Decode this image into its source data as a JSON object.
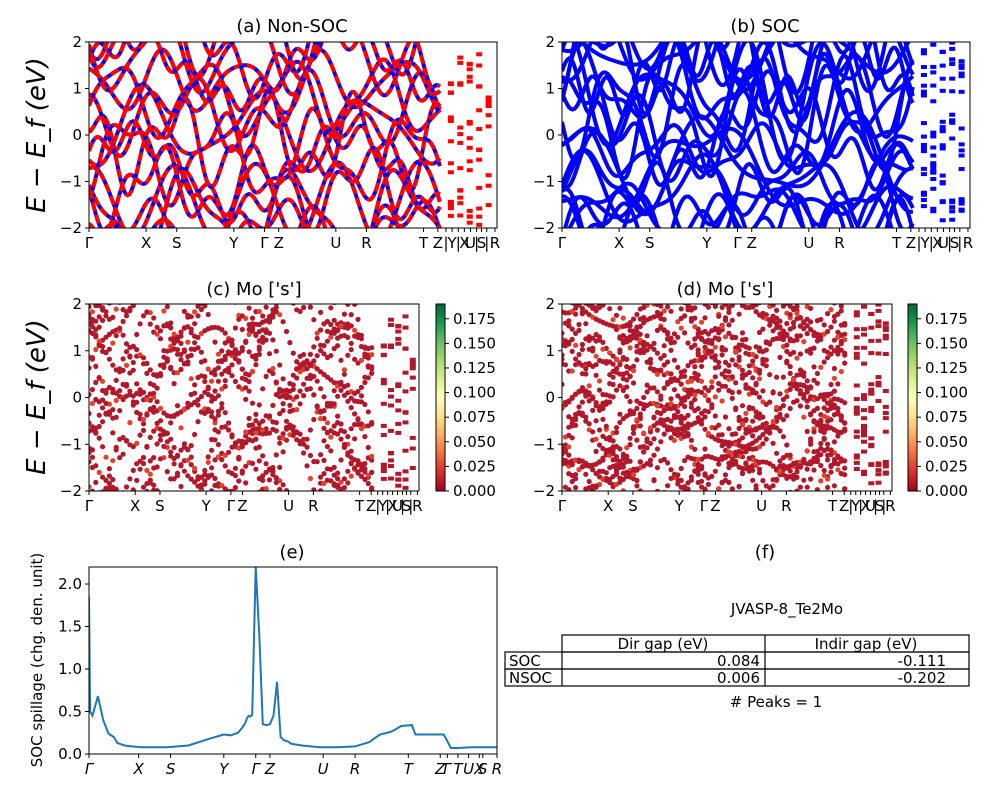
{
  "panels": {
    "a": {
      "title": "(a) Non-SOC"
    },
    "b": {
      "title": "(b) SOC"
    },
    "c": {
      "title": "(c)  Mo ['s']"
    },
    "d": {
      "title": "(d) Mo ['s']"
    },
    "e": {
      "title": "(e)"
    },
    "f": {
      "title": "(f)"
    }
  },
  "band_ylabel": "E − E_f (eV)",
  "band_yticks": [
    "2",
    "1",
    "0",
    "−1",
    "−2"
  ],
  "kpath_ab": [
    "Γ",
    "X",
    "S",
    "Y",
    "Γ",
    "Z",
    "U",
    "R",
    "T",
    "Z",
    "|",
    "Y",
    "|",
    "X",
    "U",
    "|",
    "S",
    "|",
    "R"
  ],
  "kpath_cd": [
    "Γ",
    "X",
    "S",
    "Y",
    "Γ",
    "Z",
    "U",
    "R",
    "T",
    "Z",
    "|",
    "Y",
    "|",
    "X",
    "U",
    "|",
    "S",
    "|",
    "R"
  ],
  "colorbar_ticks": [
    "0.175",
    "0.150",
    "0.125",
    "0.100",
    "0.075",
    "0.050",
    "0.025",
    "0.000"
  ],
  "colorbar_colors": {
    "low": "#a50026",
    "mid": "#ffffbf",
    "high": "#006837"
  },
  "series_colors": {
    "nonsoc_red": "#ff0000",
    "soc_blue": "#0000ff",
    "spillage": "#1f77b4",
    "proj_dot": "#b2182b"
  },
  "spillage": {
    "ylabel": "SOC spillage (chg. den. unit)",
    "yticks": [
      "2.0",
      "1.5",
      "1.0",
      "0.5",
      "0.0"
    ],
    "xticks": [
      "Γ",
      "X",
      "S",
      "Y",
      "Γ",
      "Z",
      "U",
      "R",
      "T",
      "Z",
      "Γ",
      "T",
      "U",
      "X",
      "S",
      "R"
    ]
  },
  "summary": {
    "material": "JVASP-8_Te2Mo",
    "headers": [
      "",
      "Dir gap (eV)",
      "Indir gap (eV)"
    ],
    "rows": [
      {
        "label": "SOC",
        "dir": "0.084",
        "indir": "-0.111"
      },
      {
        "label": "NSOC",
        "dir": "0.006",
        "indir": "-0.202"
      }
    ],
    "peaks": "# Peaks = 1"
  },
  "chart_data": [
    {
      "type": "line",
      "title": "(a) Non-SOC",
      "ylabel": "E − E_f (eV)",
      "ylim": [
        -2,
        2
      ]
    },
    {
      "type": "line",
      "title": "(b) SOC",
      "ylim": [
        -2,
        2
      ]
    },
    {
      "type": "scatter",
      "title": "(c)  Mo ['s']",
      "ylabel": "E − E_f (eV)",
      "ylim": [
        -2,
        2
      ],
      "colorbar_range": [
        0,
        0.19
      ]
    },
    {
      "type": "scatter",
      "title": "(d) Mo ['s']",
      "ylim": [
        -2,
        2
      ],
      "colorbar_range": [
        0,
        0.19
      ]
    },
    {
      "type": "line",
      "title": "(e)",
      "ylabel": "SOC spillage (chg. den. unit)",
      "ylim": [
        0,
        2.2
      ],
      "x": [
        0,
        0.3,
        1,
        2.5,
        4,
        5.5,
        7,
        8,
        10,
        12,
        15,
        18,
        22,
        28,
        34,
        38,
        40,
        42,
        43,
        44,
        44.5,
        45,
        45.5,
        46,
        47,
        48,
        49,
        50,
        51,
        52,
        53,
        54,
        55,
        56,
        57,
        60,
        65,
        70,
        75,
        79,
        82,
        85,
        86,
        88,
        91,
        92,
        96,
        100,
        102,
        103,
        104,
        108,
        113,
        114,
        115
      ],
      "values": [
        1.85,
        0.5,
        0.45,
        0.68,
        0.4,
        0.24,
        0.2,
        0.13,
        0.1,
        0.09,
        0.08,
        0.08,
        0.08,
        0.1,
        0.18,
        0.23,
        0.22,
        0.25,
        0.3,
        0.36,
        0.42,
        0.45,
        0.44,
        0.46,
        2.2,
        1.4,
        0.35,
        0.34,
        0.35,
        0.45,
        0.85,
        0.2,
        0.16,
        0.15,
        0.12,
        0.1,
        0.08,
        0.08,
        0.09,
        0.14,
        0.23,
        0.26,
        0.28,
        0.33,
        0.34,
        0.23,
        0.23,
        0.23,
        0.07,
        0.07,
        0.07,
        0.08,
        0.08,
        0.08,
        0.08
      ]
    }
  ]
}
